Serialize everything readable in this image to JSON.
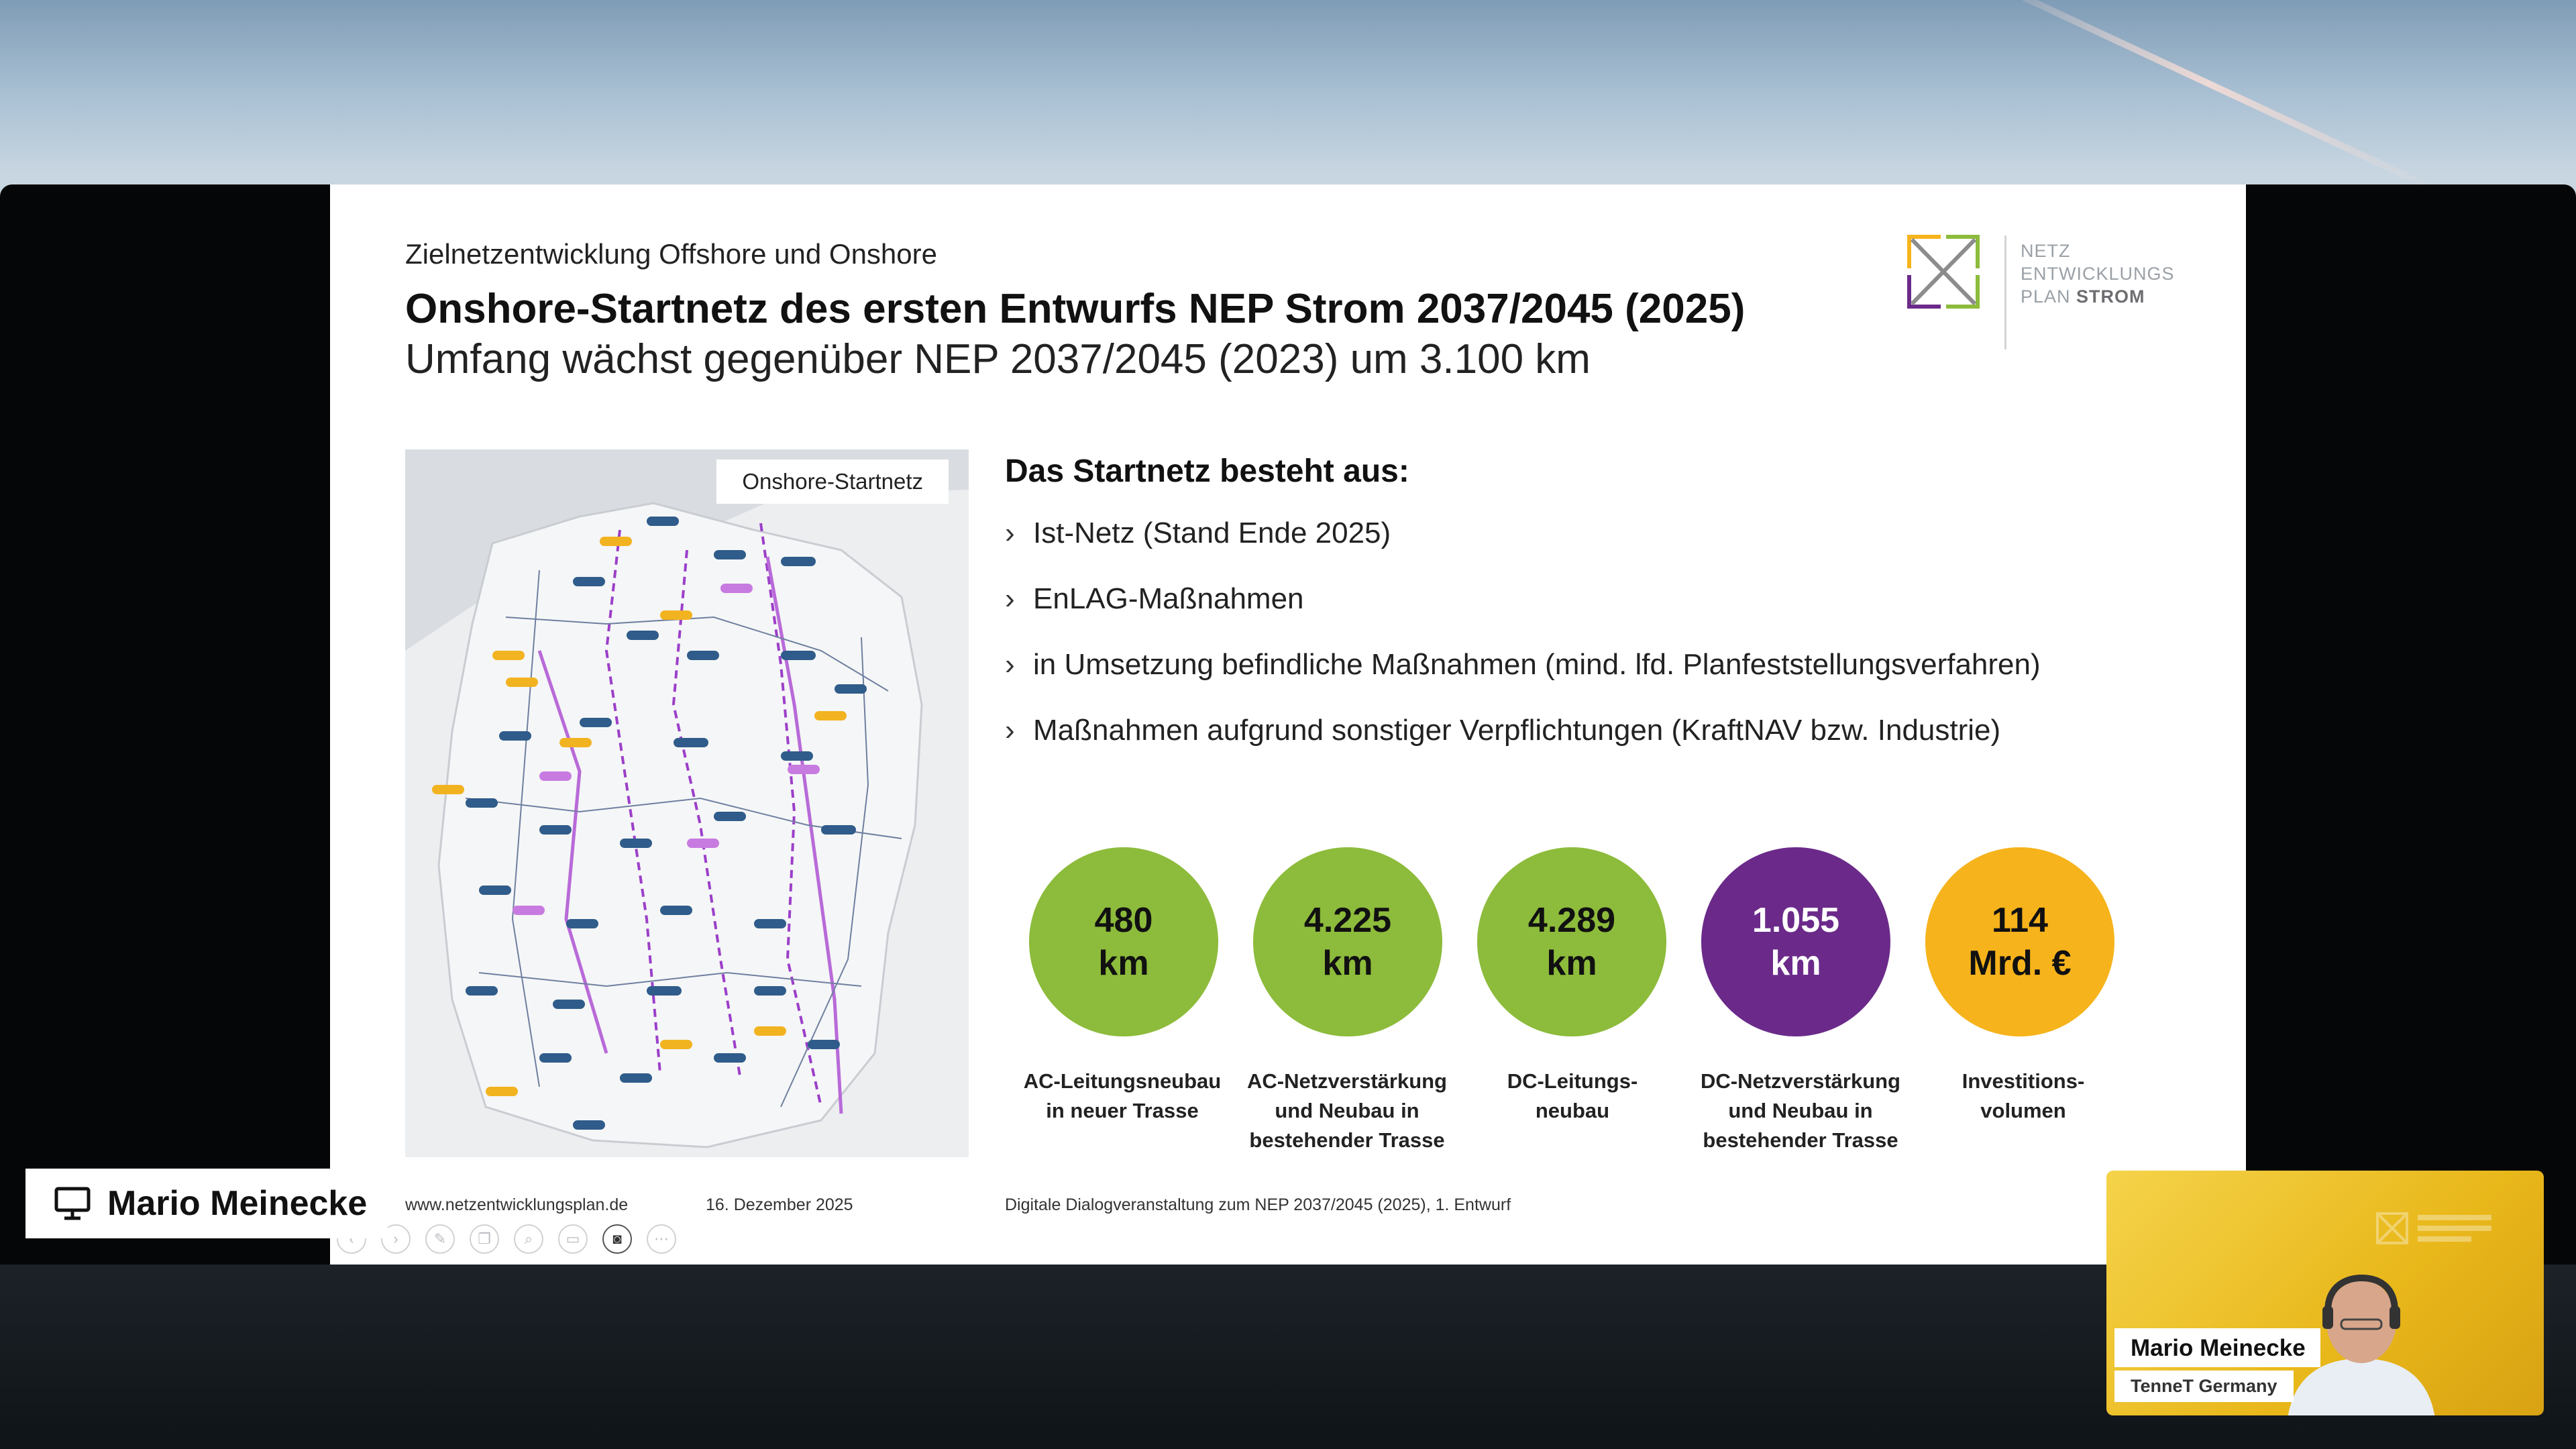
{
  "slide": {
    "subtitle": "Zielnetzentwicklung Offshore und Onshore",
    "title": "Onshore-Startnetz des ersten Entwurfs NEP Strom 2037/2045 (2025)",
    "title_line2": "Umfang wächst gegenüber NEP 2037/2045 (2023) um 3.100 km",
    "logo": {
      "line1": "NETZ",
      "line2": "ENTWICKLUNGS",
      "line3a": "PLAN ",
      "line3b": "STROM"
    },
    "map_label": "Onshore-Startnetz",
    "list_title": "Das Startnetz besteht aus:",
    "list_items": [
      "Ist-Netz (Stand Ende 2025)",
      "EnLAG-Maßnahmen",
      "in Umsetzung befindliche Maßnahmen (mind. lfd. Planfeststellungsverfahren)",
      "Maßnahmen aufgrund sonstiger Verpflichtungen (KraftNAV bzw. Industrie)"
    ],
    "stats": [
      {
        "value": "480",
        "unit": "km",
        "label_1": "AC-Leitungsneubau",
        "label_2": "in neuer Trasse",
        "label_3": "",
        "color": "#8dbb3b"
      },
      {
        "value": "4.225",
        "unit": "km",
        "label_1": "AC-Netzverstärkung",
        "label_2": "und Neubau in",
        "label_3": "bestehender Trasse",
        "color": "#8dbb3b"
      },
      {
        "value": "4.289",
        "unit": "km",
        "label_1": "DC-Leitungs-",
        "label_2": "neubau",
        "label_3": "",
        "color": "#8dbb3b"
      },
      {
        "value": "1.055",
        "unit": "km",
        "label_1": "DC-Netzverstärkung",
        "label_2": "und Neubau in",
        "label_3": "bestehender Trasse",
        "color": "#6b2a8a"
      },
      {
        "value": "114",
        "unit": "Mrd. €",
        "label_1": "Investitions-",
        "label_2": "volumen",
        "label_3": "",
        "color": "#f6b31b"
      }
    ],
    "footer": {
      "url": "www.netzentwicklungsplan.de",
      "date": "16. Dezember 2025",
      "event": "Digitale Dialogveranstaltung zum NEP 2037/2045 (2025), 1. Entwurf"
    }
  },
  "presenter_tag": {
    "name": "Mario Meinecke",
    "icon": "screen-share-icon"
  },
  "camera": {
    "name": "Mario Meinecke",
    "org": "TenneT Germany"
  },
  "toolbar_icons": [
    "previous-icon",
    "next-icon",
    "pen-icon",
    "copy-icon",
    "zoom-icon",
    "subtitles-icon",
    "camera-icon",
    "more-icon"
  ]
}
